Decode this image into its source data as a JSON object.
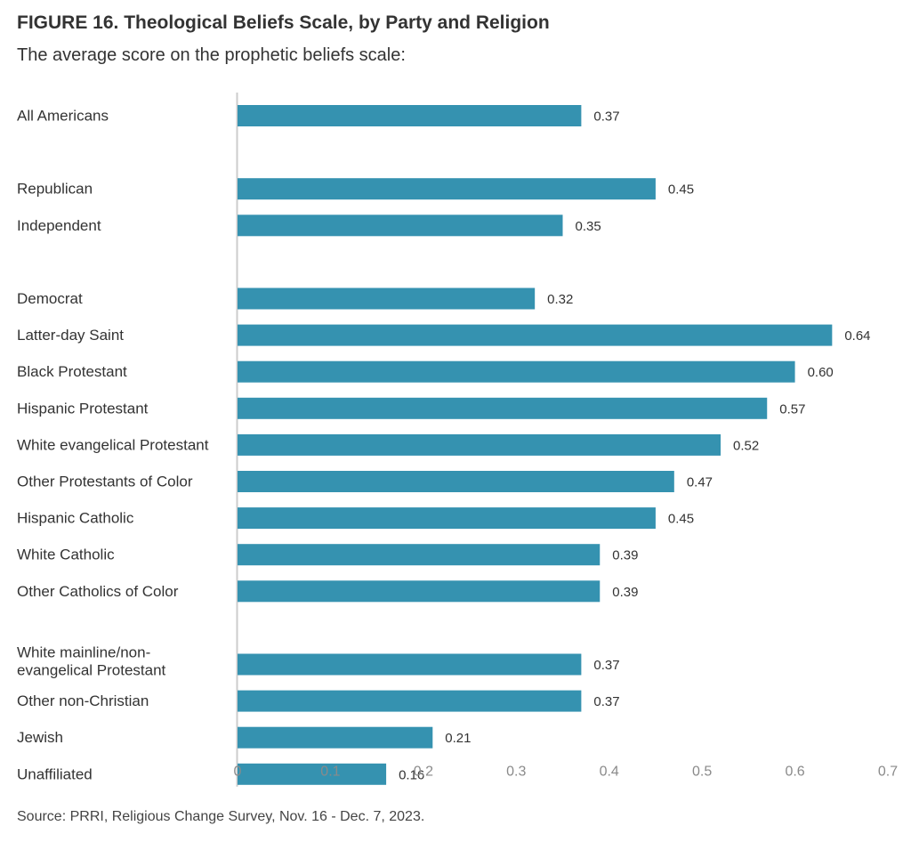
{
  "title": "FIGURE 16. Theological Beliefs Scale, by Party and Religion",
  "subtitle": "The average score on the prophetic beliefs scale:",
  "source": "Source: PRRI, Religious Change Survey, Nov. 16 - Dec. 7, 2023.",
  "colors": {
    "bar": "#3592b0",
    "axis": "#cccccc"
  },
  "chart_data": {
    "type": "bar",
    "orientation": "horizontal",
    "categories": [
      [
        "All Americans"
      ],
      [
        "Republican"
      ],
      [
        "Independent"
      ],
      [
        "Democrat"
      ],
      [
        "Latter-day Saint"
      ],
      [
        "Black Protestant"
      ],
      [
        "Hispanic Protestant"
      ],
      [
        "White evangelical Protestant"
      ],
      [
        "Other Protestants of Color"
      ],
      [
        "Hispanic Catholic"
      ],
      [
        "White Catholic"
      ],
      [
        "Other Catholics of Color"
      ],
      [
        "White mainline/non-",
        "evangelical Protestant"
      ],
      [
        "Other non-Christian"
      ],
      [
        "Jewish"
      ],
      [
        "Unaffiliated"
      ]
    ],
    "values": [
      0.37,
      0.45,
      0.35,
      0.32,
      0.64,
      0.6,
      0.57,
      0.52,
      0.47,
      0.45,
      0.39,
      0.39,
      0.37,
      0.37,
      0.21,
      0.16
    ],
    "value_labels": [
      "0.37",
      "0.45",
      "0.35",
      "0.32",
      "0.64",
      "0.60",
      "0.57",
      "0.52",
      "0.47",
      "0.45",
      "0.39",
      "0.39",
      "0.37",
      "0.37",
      "0.21",
      "0.16"
    ],
    "groups": [
      1,
      3,
      12
    ],
    "xlim": [
      0,
      0.7
    ],
    "xticks": [
      "0",
      "0.1",
      "0.2",
      "0.3",
      "0.4",
      "0.5",
      "0.6",
      "0.7"
    ],
    "grid": false
  }
}
